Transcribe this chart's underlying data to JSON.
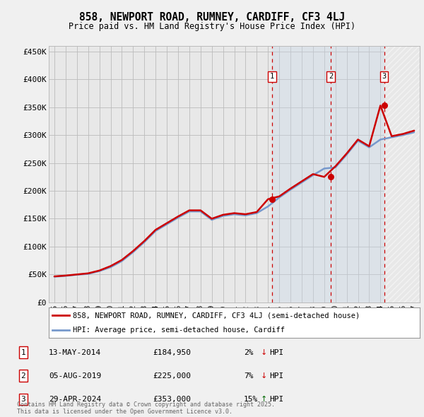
{
  "title": "858, NEWPORT ROAD, RUMNEY, CARDIFF, CF3 4LJ",
  "subtitle": "Price paid vs. HM Land Registry's House Price Index (HPI)",
  "ylabel_ticks": [
    "£0",
    "£50K",
    "£100K",
    "£150K",
    "£200K",
    "£250K",
    "£300K",
    "£350K",
    "£400K",
    "£450K"
  ],
  "ytick_values": [
    0,
    50000,
    100000,
    150000,
    200000,
    250000,
    300000,
    350000,
    400000,
    450000
  ],
  "ylim": [
    0,
    460000
  ],
  "xlim_start": 1994.5,
  "xlim_end": 2027.5,
  "background_color": "#f0f0f0",
  "plot_bg_color": "#e8e8e8",
  "grid_color": "#bbbbbb",
  "hpi_color": "#7799cc",
  "price_color": "#cc0000",
  "transaction_dates": [
    2014.36,
    2019.59,
    2024.33
  ],
  "transaction_labels": [
    "1",
    "2",
    "3"
  ],
  "transaction_prices": [
    184950,
    225000,
    353000
  ],
  "vline_color": "#cc0000",
  "shade_color": "#c8d8e8",
  "legend_entries": [
    "858, NEWPORT ROAD, RUMNEY, CARDIFF, CF3 4LJ (semi-detached house)",
    "HPI: Average price, semi-detached house, Cardiff"
  ],
  "table_rows": [
    [
      "1",
      "13-MAY-2014",
      "£184,950",
      "2%",
      "↓",
      "HPI"
    ],
    [
      "2",
      "05-AUG-2019",
      "£225,000",
      "7%",
      "↓",
      "HPI"
    ],
    [
      "3",
      "29-APR-2024",
      "£353,000",
      "15%",
      "↑",
      "HPI"
    ]
  ],
  "arrow_colors": [
    "#cc0000",
    "#cc0000",
    "#006600"
  ],
  "footnote": "Contains HM Land Registry data © Crown copyright and database right 2025.\nThis data is licensed under the Open Government Licence v3.0.",
  "xtick_labels": [
    "95",
    "96",
    "97",
    "98",
    "99",
    "00",
    "01",
    "02",
    "03",
    "04",
    "05",
    "06",
    "07",
    "08",
    "09",
    "10",
    "11",
    "12",
    "13",
    "14",
    "15",
    "16",
    "17",
    "18",
    "19",
    "20",
    "21",
    "22",
    "23",
    "24",
    "25",
    "26",
    "27"
  ],
  "xtick_years": [
    1995,
    1996,
    1997,
    1998,
    1999,
    2000,
    2001,
    2002,
    2003,
    2004,
    2005,
    2006,
    2007,
    2008,
    2009,
    2010,
    2011,
    2012,
    2013,
    2014,
    2015,
    2016,
    2017,
    2018,
    2019,
    2020,
    2021,
    2022,
    2023,
    2024,
    2025,
    2026,
    2027
  ],
  "hpi_values": [
    46000,
    47500,
    49500,
    51000,
    56000,
    63000,
    74000,
    90000,
    108000,
    128000,
    140000,
    152000,
    163000,
    163000,
    148000,
    155000,
    158000,
    156000,
    160000,
    172000,
    188000,
    202000,
    215000,
    228000,
    240000,
    242000,
    265000,
    290000,
    278000,
    292000,
    296000,
    300000,
    305000
  ],
  "price_values": [
    46500,
    48000,
    50000,
    52000,
    57000,
    65000,
    76000,
    92000,
    110000,
    130000,
    142000,
    154000,
    165000,
    165000,
    150000,
    157000,
    160000,
    158000,
    162000,
    185000,
    190000,
    204000,
    217000,
    230000,
    225000,
    244000,
    267000,
    292000,
    280000,
    353000,
    298000,
    302000,
    308000
  ]
}
